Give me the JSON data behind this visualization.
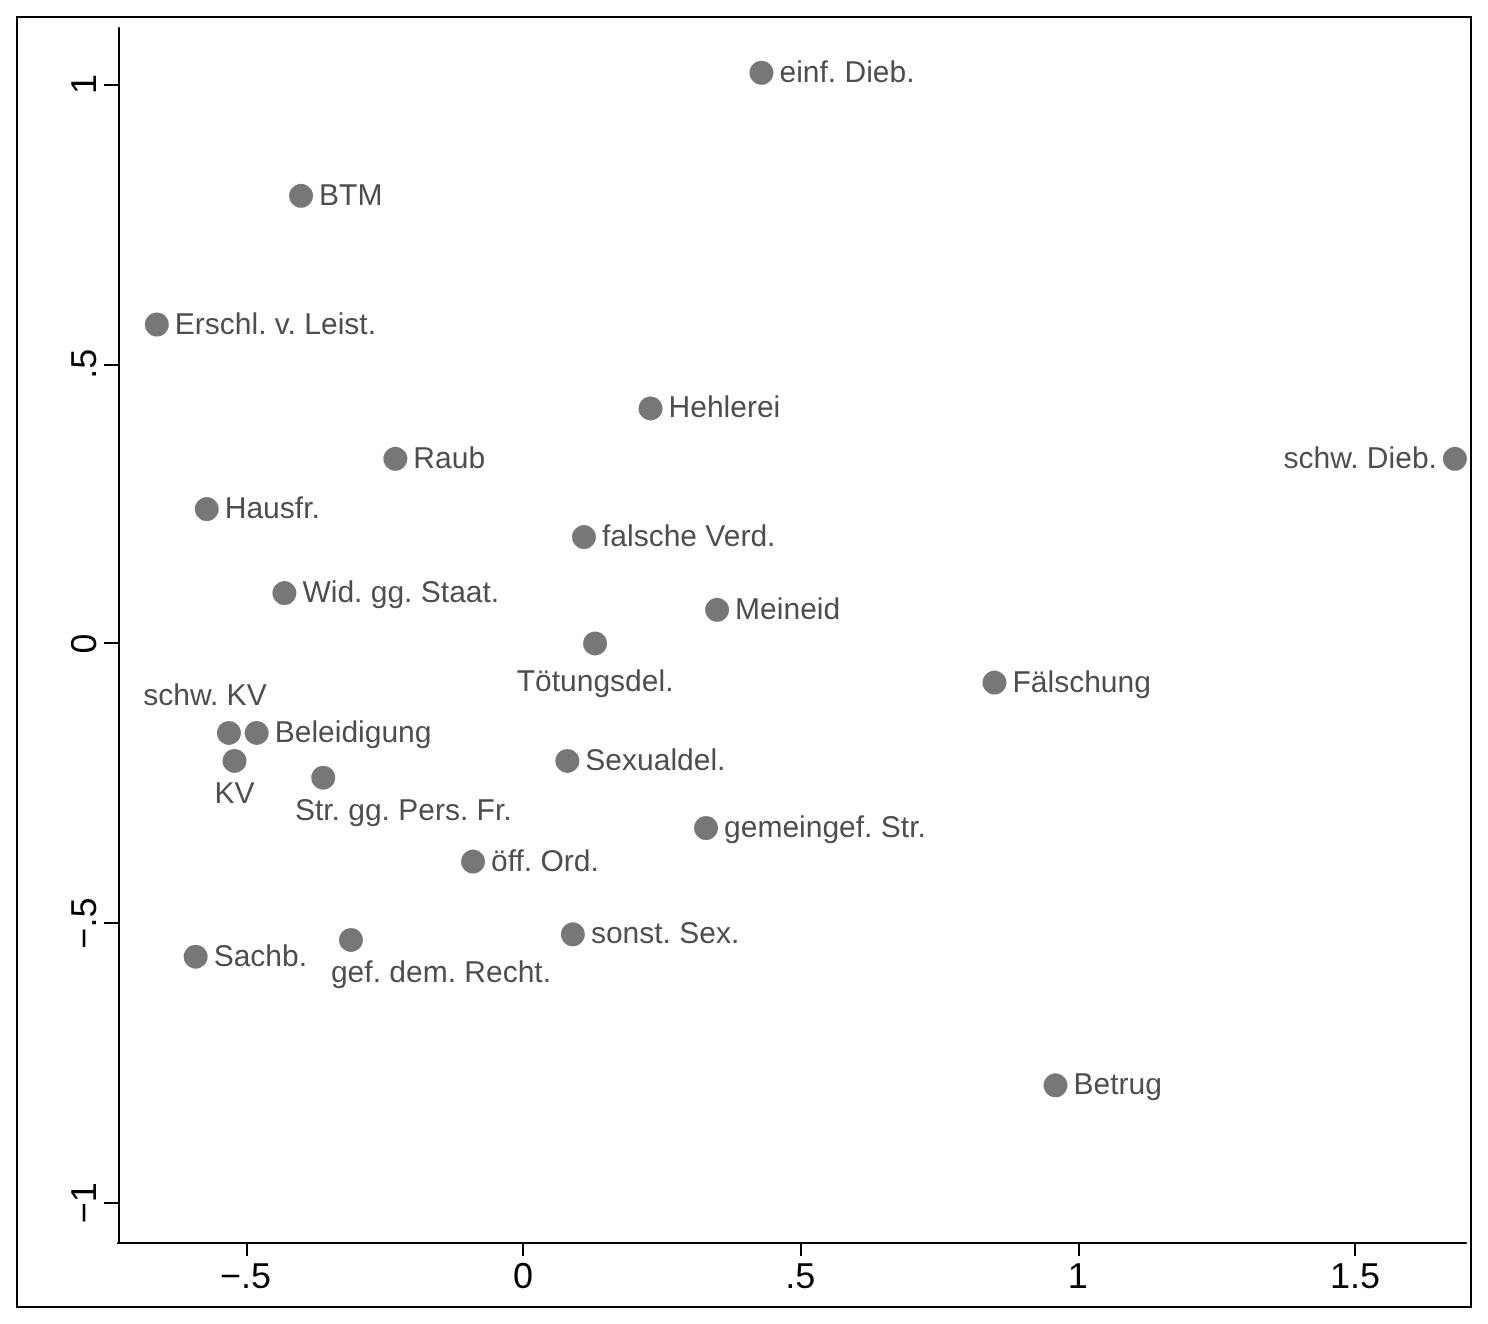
{
  "chart_data": {
    "type": "scatter",
    "marker": "circle",
    "grid": false,
    "legend": false,
    "xlim": [
      -0.73,
      1.7
    ],
    "ylim": [
      -1.07,
      1.1
    ],
    "xticks": [
      {
        "value": -0.5,
        "label": "−.5"
      },
      0,
      {
        "value": 0.5,
        "label": ".5"
      },
      1,
      {
        "value": 1.5,
        "label": "1.5"
      }
    ],
    "yticks": [
      {
        "value": -1,
        "label": "−1"
      },
      {
        "value": -0.5,
        "label": "−.5"
      },
      0,
      {
        "value": 0.5,
        "label": ".5"
      },
      1
    ],
    "series": [
      {
        "name": "einf. Dieb.",
        "color": "#555555",
        "x": [
          0.43
        ],
        "values": [
          1.02
        ]
      },
      {
        "name": "BTM",
        "color": "#555555",
        "x": [
          -0.4
        ],
        "values": [
          0.8
        ]
      },
      {
        "name": "Erschl. v. Leist.",
        "color": "#555555",
        "x": [
          -0.66
        ],
        "values": [
          0.57
        ]
      },
      {
        "name": "Hehlerei",
        "color": "#555555",
        "x": [
          0.23
        ],
        "values": [
          0.42
        ]
      },
      {
        "name": "Raub",
        "color": "#555555",
        "x": [
          -0.23
        ],
        "values": [
          0.33
        ]
      },
      {
        "name": "schw. Dieb.",
        "color": "#555555",
        "x": [
          1.68
        ],
        "values": [
          0.33
        ]
      },
      {
        "name": "Hausfr.",
        "color": "#555555",
        "x": [
          -0.57
        ],
        "values": [
          0.24
        ]
      },
      {
        "name": "falsche Verd.",
        "color": "#555555",
        "x": [
          0.11
        ],
        "values": [
          0.19
        ]
      },
      {
        "name": "Wid. gg. Staat.",
        "color": "#555555",
        "x": [
          -0.43
        ],
        "values": [
          0.09
        ]
      },
      {
        "name": "Meineid",
        "color": "#555555",
        "x": [
          0.35
        ],
        "values": [
          0.06
        ]
      },
      {
        "name": "Tötungsdel.",
        "color": "#555555",
        "x": [
          0.13
        ],
        "values": [
          0.0
        ]
      },
      {
        "name": "Fälschung",
        "color": "#555555",
        "x": [
          0.85
        ],
        "values": [
          -0.07
        ]
      },
      {
        "name": "schw. KV",
        "color": "#555555",
        "x": [
          -0.53
        ],
        "values": [
          -0.16
        ]
      },
      {
        "name": "Beleidigung",
        "color": "#555555",
        "x": [
          -0.48
        ],
        "values": [
          -0.16
        ]
      },
      {
        "name": "KV",
        "color": "#555555",
        "x": [
          -0.52
        ],
        "values": [
          -0.21
        ]
      },
      {
        "name": "Str. gg. Pers. Fr.",
        "color": "#555555",
        "x": [
          -0.36
        ],
        "values": [
          -0.24
        ]
      },
      {
        "name": "Sexualdel.",
        "color": "#555555",
        "x": [
          0.08
        ],
        "values": [
          -0.21
        ]
      },
      {
        "name": "gemeingef. Str.",
        "color": "#555555",
        "x": [
          0.33
        ],
        "values": [
          -0.33
        ]
      },
      {
        "name": "öff. Ord.",
        "color": "#555555",
        "x": [
          -0.09
        ],
        "values": [
          -0.39
        ]
      },
      {
        "name": "Sachb.",
        "color": "#555555",
        "x": [
          -0.59
        ],
        "values": [
          -0.56
        ]
      },
      {
        "name": "sonst. Sex.",
        "color": "#555555",
        "x": [
          0.09
        ],
        "values": [
          -0.52
        ]
      },
      {
        "name": "gef. dem. Recht.",
        "color": "#555555",
        "x": [
          -0.31
        ],
        "values": [
          -0.53
        ]
      },
      {
        "name": "Betrug",
        "color": "#555555",
        "x": [
          0.96
        ],
        "values": [
          -0.79
        ]
      }
    ]
  }
}
